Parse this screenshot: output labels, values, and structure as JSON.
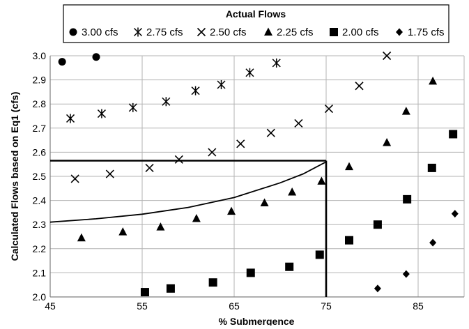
{
  "chart_data": {
    "type": "scatter",
    "title": "",
    "xlabel": "% Submergence",
    "ylabel": "Calculated Flows based on Eq1 (cfs)",
    "xlim": [
      45,
      90
    ],
    "ylim": [
      2.0,
      3.0
    ],
    "x_ticks": [
      "45",
      "55",
      "65",
      "75",
      "85"
    ],
    "y_ticks": [
      "2.0",
      "2.1",
      "2.2",
      "2.3",
      "2.4",
      "2.5",
      "2.6",
      "2.7",
      "2.8",
      "2.9",
      "3.0"
    ],
    "grid": "vertical and horizontal major gridlines",
    "legend": {
      "title": "Actual Flows",
      "placement": "top",
      "colors": {
        "marker": "#000000",
        "grid": "#b3b3b3",
        "axis": "#7f7f7f"
      }
    },
    "series": [
      {
        "name": "3.00 cfs",
        "marker": "circle",
        "points": [
          [
            46.3,
            2.975
          ],
          [
            50.0,
            2.995
          ]
        ]
      },
      {
        "name": "2.75 cfs",
        "marker": "asterisk",
        "points": [
          [
            47.2,
            2.74
          ],
          [
            50.6,
            2.76
          ],
          [
            54.0,
            2.785
          ],
          [
            57.6,
            2.81
          ],
          [
            60.8,
            2.855
          ],
          [
            63.6,
            2.88
          ],
          [
            66.7,
            2.93
          ],
          [
            69.6,
            2.97
          ]
        ]
      },
      {
        "name": "2.50 cfs",
        "marker": "x",
        "points": [
          [
            47.7,
            2.49
          ],
          [
            51.5,
            2.51
          ],
          [
            55.8,
            2.535
          ],
          [
            59.0,
            2.57
          ],
          [
            62.6,
            2.6
          ],
          [
            65.7,
            2.635
          ],
          [
            69.0,
            2.68
          ],
          [
            72.0,
            2.72
          ],
          [
            75.3,
            2.78
          ],
          [
            78.6,
            2.875
          ],
          [
            81.6,
            3.0
          ]
        ]
      },
      {
        "name": "2.25 cfs",
        "marker": "triangle",
        "points": [
          [
            48.4,
            2.245
          ],
          [
            52.9,
            2.27
          ],
          [
            57.0,
            2.29
          ],
          [
            60.9,
            2.325
          ],
          [
            64.7,
            2.355
          ],
          [
            68.3,
            2.39
          ],
          [
            71.3,
            2.435
          ],
          [
            74.5,
            2.48
          ],
          [
            77.5,
            2.54
          ],
          [
            81.6,
            2.64
          ],
          [
            83.7,
            2.77
          ],
          [
            86.6,
            2.895
          ]
        ]
      },
      {
        "name": "2.00 cfs",
        "marker": "square",
        "points": [
          [
            55.3,
            2.02
          ],
          [
            58.1,
            2.035
          ],
          [
            62.7,
            2.06
          ],
          [
            66.8,
            2.1
          ],
          [
            71.0,
            2.125
          ],
          [
            74.3,
            2.175
          ],
          [
            77.5,
            2.235
          ],
          [
            80.6,
            2.3
          ],
          [
            83.8,
            2.405
          ],
          [
            86.5,
            2.535
          ],
          [
            88.8,
            2.675
          ]
        ]
      },
      {
        "name": "1.75 cfs",
        "marker": "diamond",
        "points": [
          [
            80.6,
            2.035
          ],
          [
            83.7,
            2.095
          ],
          [
            86.6,
            2.225
          ],
          [
            89.0,
            2.345
          ]
        ]
      }
    ],
    "lines": [
      {
        "kind": "curve",
        "points": [
          [
            45,
            2.31
          ],
          [
            50,
            2.324
          ],
          [
            55,
            2.343
          ],
          [
            60,
            2.371
          ],
          [
            65,
            2.412
          ],
          [
            70,
            2.473
          ],
          [
            72.5,
            2.51
          ],
          [
            75,
            2.56
          ]
        ]
      },
      {
        "kind": "reference",
        "points": [
          [
            45,
            2.565
          ],
          [
            75,
            2.565
          ]
        ]
      },
      {
        "kind": "reference",
        "points": [
          [
            75,
            2.565
          ],
          [
            75,
            2.0
          ]
        ]
      }
    ]
  }
}
